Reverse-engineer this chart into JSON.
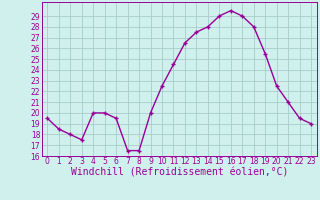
{
  "x": [
    0,
    1,
    2,
    3,
    4,
    5,
    6,
    7,
    8,
    9,
    10,
    11,
    12,
    13,
    14,
    15,
    16,
    17,
    18,
    19,
    20,
    21,
    22,
    23
  ],
  "y": [
    19.5,
    18.5,
    18.0,
    17.5,
    20.0,
    20.0,
    19.5,
    16.5,
    16.5,
    20.0,
    22.5,
    24.5,
    26.5,
    27.5,
    28.0,
    29.0,
    29.5,
    29.0,
    28.0,
    25.5,
    22.5,
    21.0,
    19.5,
    19.0
  ],
  "line_color": "#990099",
  "marker": "+",
  "xlabel": "Windchill (Refroidissement éolien,°C)",
  "ylim": [
    16,
    30
  ],
  "xlim": [
    -0.5,
    23.5
  ],
  "yticks": [
    16,
    17,
    18,
    19,
    20,
    21,
    22,
    23,
    24,
    25,
    26,
    27,
    28,
    29
  ],
  "xticks": [
    0,
    1,
    2,
    3,
    4,
    5,
    6,
    7,
    8,
    9,
    10,
    11,
    12,
    13,
    14,
    15,
    16,
    17,
    18,
    19,
    20,
    21,
    22,
    23
  ],
  "background_color": "#cff0ec",
  "grid_color": "#aacccc",
  "tick_fontsize": 5.5,
  "xlabel_fontsize": 7.0,
  "linewidth": 1.0,
  "markersize": 3.5
}
